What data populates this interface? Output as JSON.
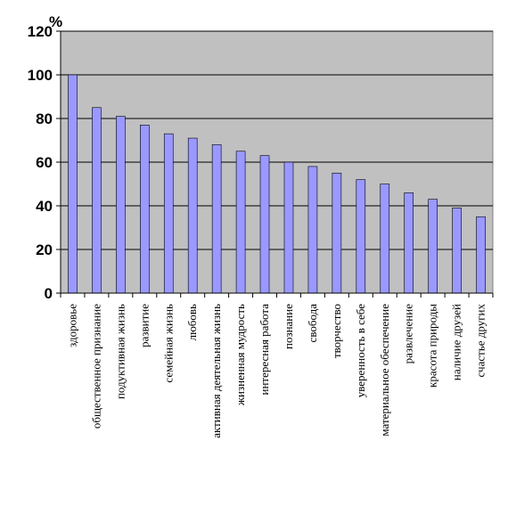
{
  "chart_data": {
    "type": "bar",
    "unit_label": "%",
    "categories": [
      "здоровье",
      "общественное признание",
      "подуктивная жизнь",
      "развитие",
      "семейная жизнь",
      "любовь",
      "активная деятельная жизнь",
      "жизненная мудрость",
      "интересная работа",
      "познание",
      "свобода",
      "творчество",
      "уверенность в себе",
      "материальное обеспечение",
      "развлечение",
      "красота природы",
      "наличие друзей",
      "счастье других"
    ],
    "values": [
      100,
      85,
      81,
      77,
      73,
      71,
      68,
      65,
      63,
      60,
      58,
      55,
      52,
      50,
      46,
      43,
      39,
      35
    ],
    "ylim": [
      0,
      120
    ],
    "yticks": [
      0,
      20,
      40,
      60,
      80,
      100,
      120
    ],
    "grid": true,
    "legend": "none",
    "colors": {
      "plot_background": "#c0c0c0",
      "bar_fill": "#9999ff",
      "bar_stroke": "#000000",
      "gridline": "#000000"
    }
  }
}
